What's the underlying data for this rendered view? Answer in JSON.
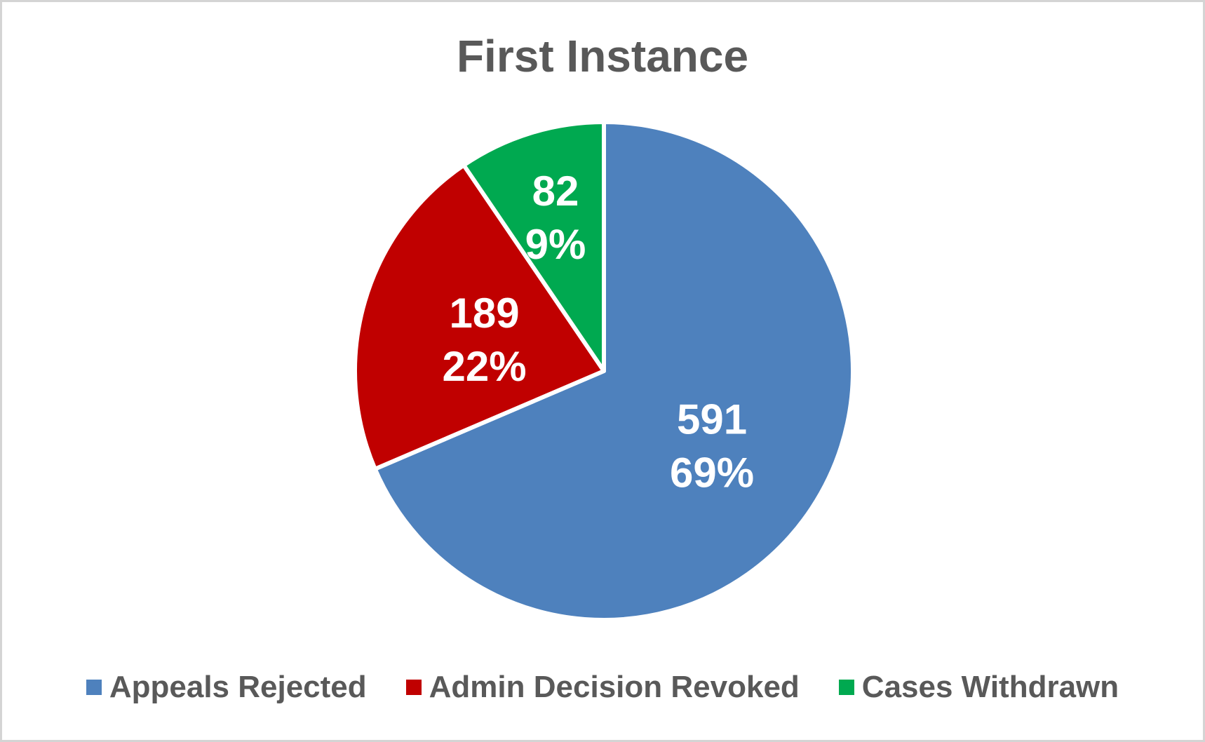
{
  "title": "First Instance",
  "chart_data": {
    "type": "pie",
    "title": "First Instance",
    "categories": [
      "Appeals Rejected",
      "Admin Decision Revoked",
      "Cases Withdrawn"
    ],
    "values": [
      591,
      189,
      82
    ],
    "percent_labels": [
      "69%",
      "22%",
      "9%"
    ],
    "colors": [
      "#4E81BD",
      "#C00000",
      "#00A950"
    ],
    "start_angle_deg": 0,
    "direction": "clockwise",
    "legend_position": "bottom",
    "labels_inside_slices": true
  },
  "legend": {
    "items": [
      {
        "label": "Appeals Rejected",
        "color": "#4E81BD"
      },
      {
        "label": "Admin Decision Revoked",
        "color": "#C00000"
      },
      {
        "label": "Cases Withdrawn",
        "color": "#00A950"
      }
    ]
  },
  "styles": {
    "title_color": "#595959",
    "legend_text_color": "#595959",
    "slice_label_color": "#FFFFFF",
    "slice_border_color": "#FFFFFF",
    "canvas_border_color": "#D4D4D4",
    "background": "#FFFFFF"
  }
}
